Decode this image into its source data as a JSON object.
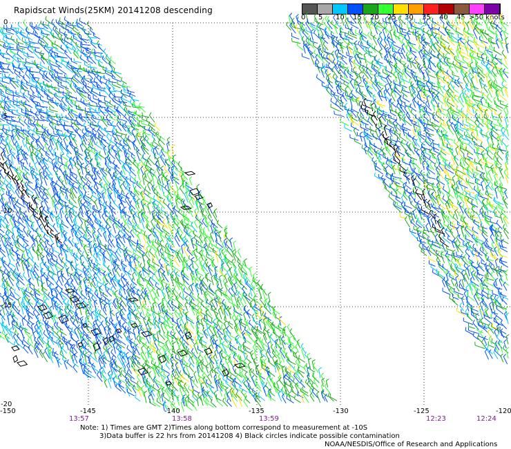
{
  "title": "Rapidscat Winds(25KM) 20141208 descending",
  "legend": {
    "colors": [
      "#555555",
      "#a8a8a8",
      "#00c8ff",
      "#0050ff",
      "#1aa61a",
      "#33ff33",
      "#ffe000",
      "#ffa000",
      "#ff2020",
      "#b00000",
      "#8b5a3c",
      "#ff40ff",
      "#7d00a8"
    ],
    "labels": [
      "0",
      "5",
      "10",
      "15",
      "20",
      "25",
      "30",
      "35",
      "40",
      "45",
      ">50 knots"
    ]
  },
  "axes": {
    "lon_labels": [
      "-150",
      "-145",
      "-140",
      "-135",
      "-130",
      "-125",
      "-120"
    ],
    "lat_labels": [
      "0",
      "-5",
      "-10",
      "-15",
      "-20"
    ]
  },
  "times": [
    "13:57",
    "13:58",
    "13:59",
    "12:23",
    "12:24"
  ],
  "notes": {
    "line1": "Note: 1) Times are GMT 2)Times along bottom correspond to measurement at -10S",
    "line2": "3)Data buffer is 22 hrs from 20141208 4) Black circles indicate possible contamination"
  },
  "credit": "NOAA/NESDIS/Office of Research and Applications"
}
